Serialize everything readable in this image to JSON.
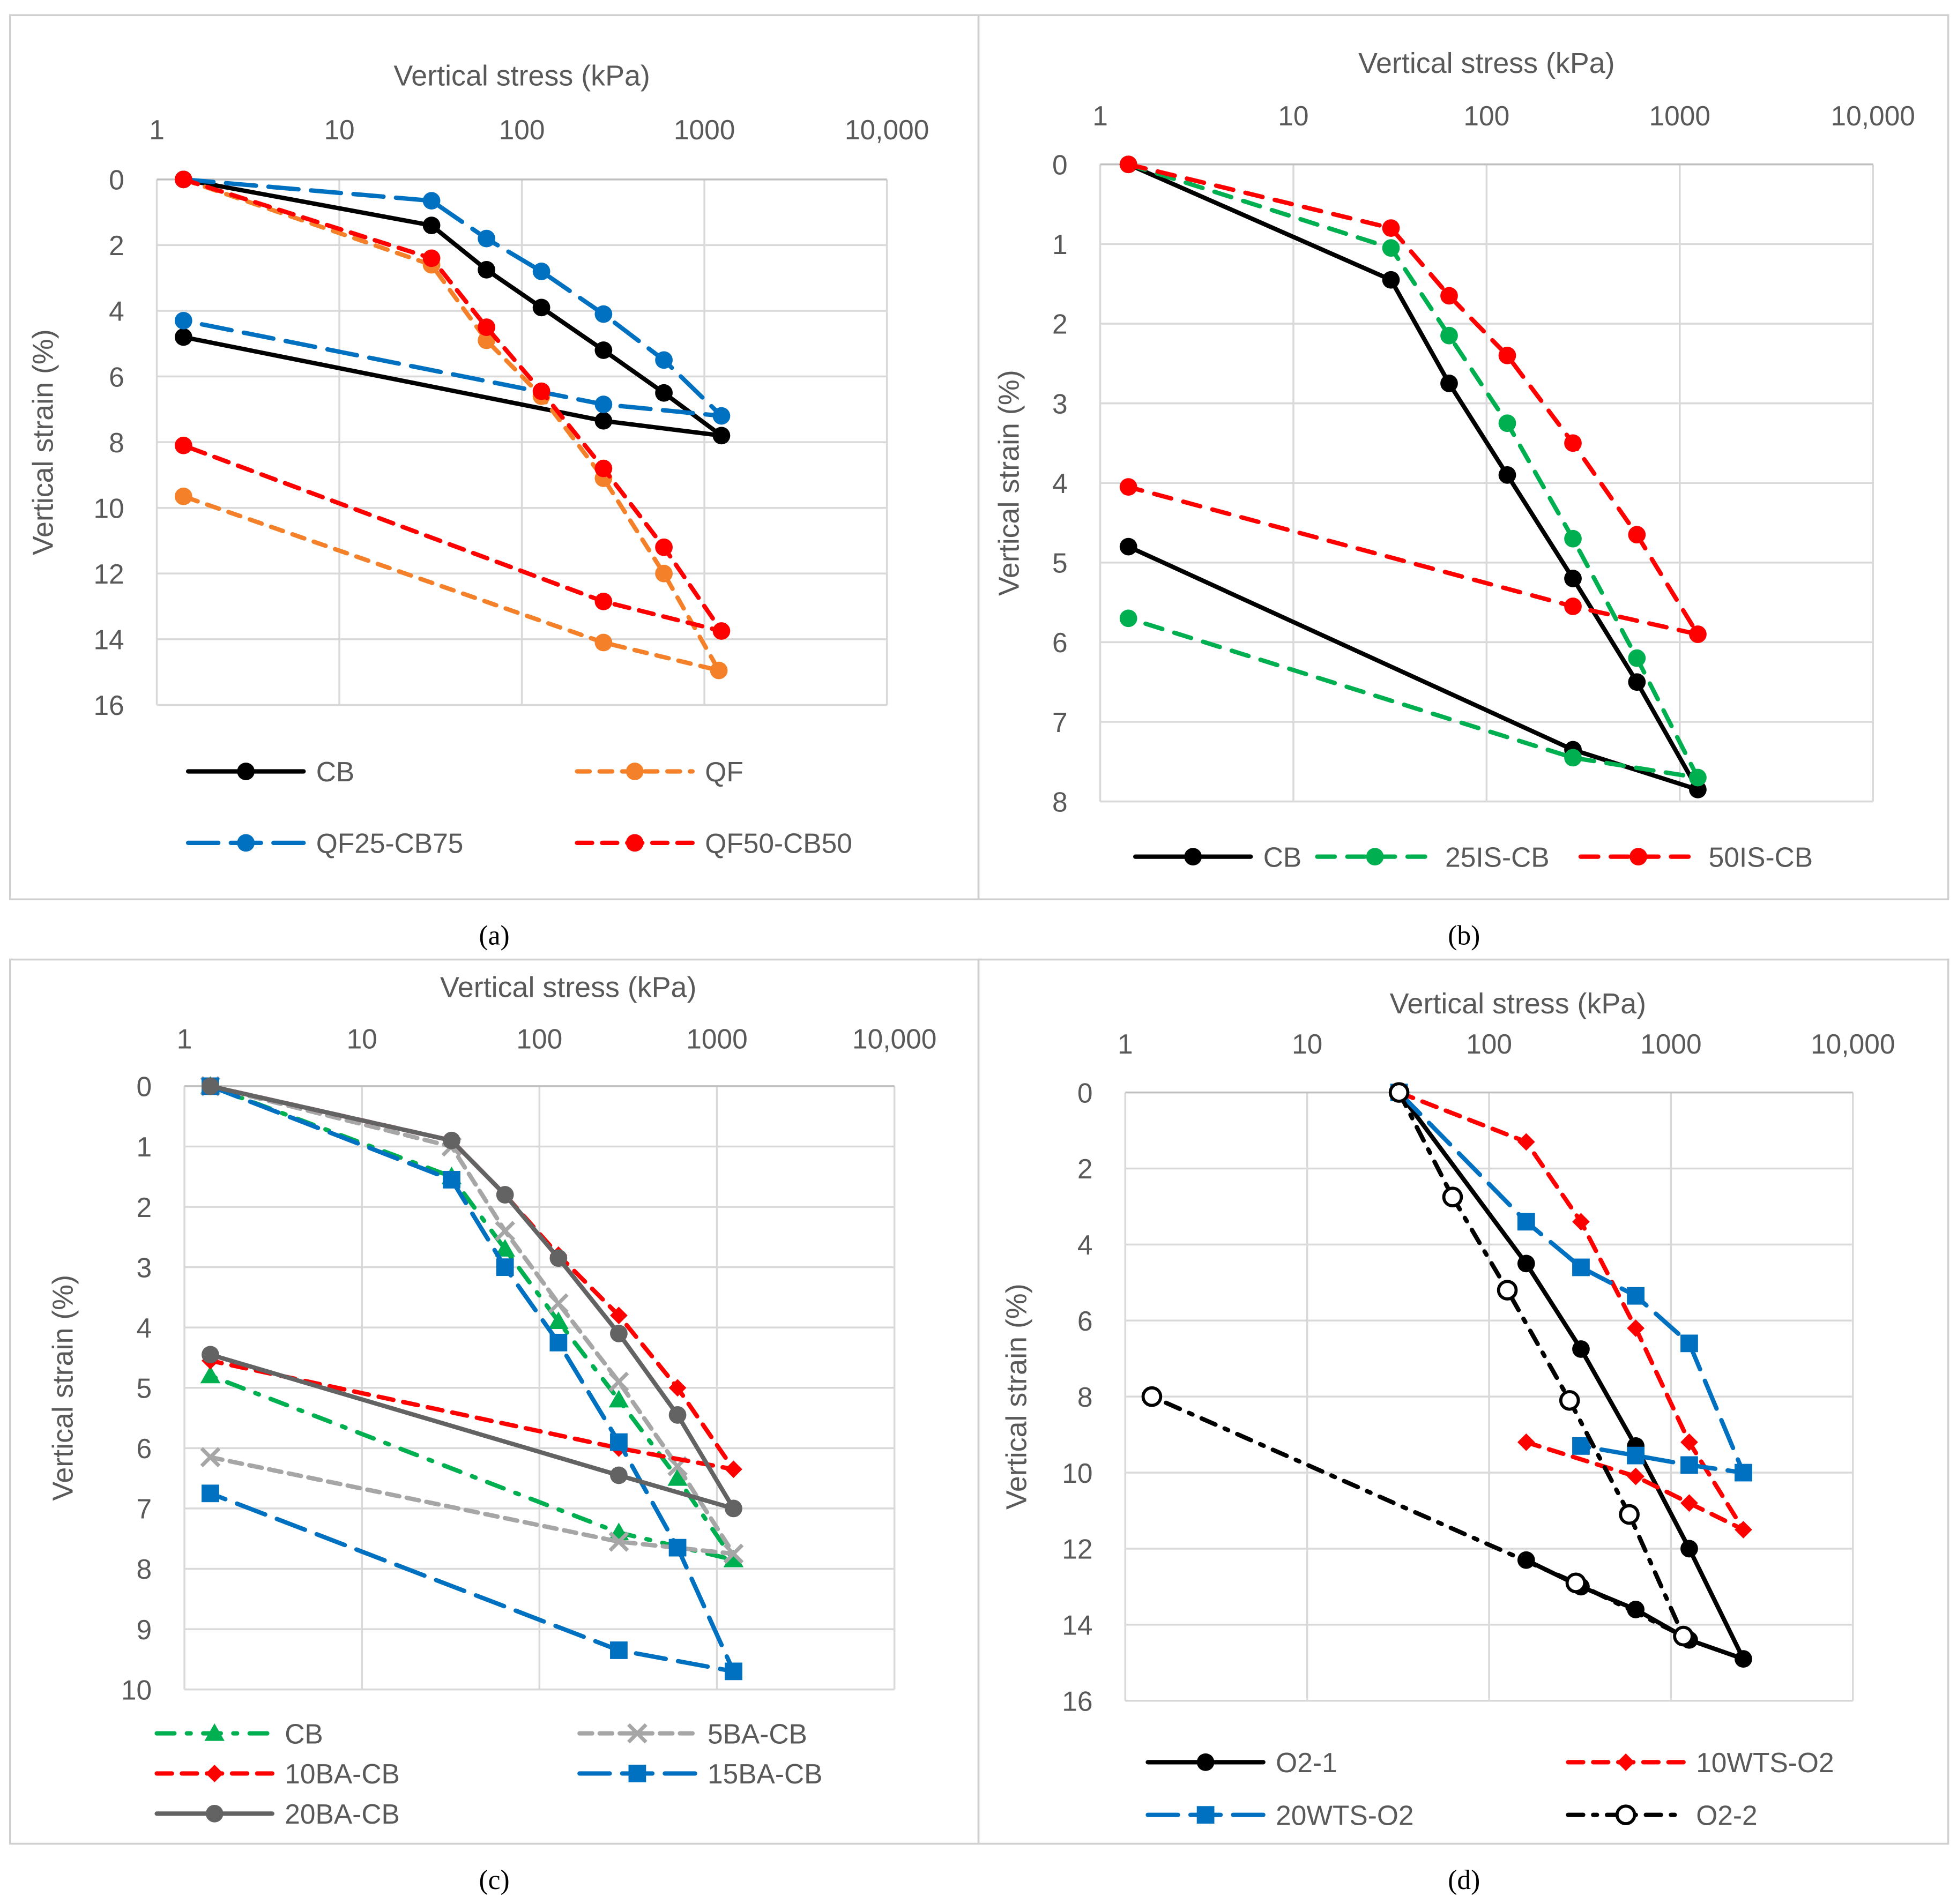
{
  "captions": [
    "(a)",
    "(b)",
    "(c)",
    "(d)"
  ],
  "chart_data": [
    {
      "type": "line",
      "title": "Vertical stress (kPa)",
      "xlabel": "Vertical stress (kPa)",
      "ylabel": "Vertical strain (%)",
      "xscale": "log",
      "xlim": [
        1,
        10000
      ],
      "ylim": [
        0,
        16
      ],
      "y_inverted": true,
      "x_axis_position": "top",
      "xticks": [
        "1",
        "10",
        "100",
        "1000",
        "10,000"
      ],
      "yticks": [
        "0",
        "2",
        "4",
        "6",
        "8",
        "10",
        "12",
        "14",
        "16"
      ],
      "grid": true,
      "legend": "bottom",
      "series": [
        {
          "name": "CB",
          "color": "#000000",
          "marker": "circle",
          "x": [
            1.4,
            32,
            64,
            128,
            280,
            600,
            1240,
            280,
            1.4
          ],
          "y": [
            0,
            1.4,
            2.75,
            3.9,
            5.2,
            6.5,
            7.8,
            7.35,
            4.8
          ]
        },
        {
          "name": "QF",
          "color": "#F4812A",
          "marker": "circle",
          "x": [
            1.4,
            32,
            64,
            128,
            280,
            600,
            1200,
            280,
            1.4
          ],
          "y": [
            0,
            2.6,
            4.9,
            6.6,
            9.1,
            12.0,
            14.95,
            14.1,
            9.65
          ]
        },
        {
          "name": "QF25-CB75",
          "color": "#0070C0",
          "marker": "circle",
          "x": [
            1.4,
            32,
            64,
            128,
            280,
            600,
            1240,
            280,
            1.4
          ],
          "y": [
            0,
            0.65,
            1.8,
            2.8,
            4.1,
            5.5,
            7.2,
            6.85,
            4.3
          ]
        },
        {
          "name": "QF50-CB50",
          "color": "#FF0000",
          "marker": "circle",
          "x": [
            1.4,
            32,
            64,
            128,
            280,
            600,
            1240,
            280,
            1.4
          ],
          "y": [
            0,
            2.4,
            4.5,
            6.45,
            8.8,
            11.2,
            13.75,
            12.85,
            8.1
          ]
        }
      ]
    },
    {
      "type": "line",
      "title": "Vertical stress  (kPa)",
      "xlabel": "Vertical stress  (kPa)",
      "ylabel": "Vertical strain  (%)",
      "xscale": "log",
      "xlim": [
        1,
        10000
      ],
      "ylim": [
        0,
        8
      ],
      "y_inverted": true,
      "x_axis_position": "top",
      "xticks": [
        "1",
        "10",
        "100",
        "1000",
        "10,000"
      ],
      "yticks": [
        "0",
        "1",
        "2",
        "3",
        "4",
        "5",
        "6",
        "7",
        "8"
      ],
      "grid": true,
      "legend": "bottom",
      "series": [
        {
          "name": "CB",
          "color": "#000000",
          "marker": "circle",
          "x": [
            1.4,
            32,
            64,
            128,
            280,
            600,
            1240,
            280,
            1.4
          ],
          "y": [
            0,
            1.45,
            2.75,
            3.9,
            5.2,
            6.5,
            7.85,
            7.35,
            4.8
          ]
        },
        {
          "name": "25IS-CB",
          "color": "#00B050",
          "marker": "circle",
          "x": [
            1.4,
            32,
            64,
            128,
            280,
            600,
            1240,
            280,
            1.4
          ],
          "y": [
            0,
            1.05,
            2.15,
            3.25,
            4.7,
            6.2,
            7.7,
            7.45,
            5.7
          ]
        },
        {
          "name": "50IS-CB",
          "color": "#FF0000",
          "marker": "circle",
          "x": [
            1.4,
            32,
            64,
            128,
            280,
            600,
            1240,
            280,
            1.4
          ],
          "y": [
            0,
            0.8,
            1.65,
            2.4,
            3.5,
            4.65,
            5.9,
            5.55,
            4.05
          ]
        }
      ]
    },
    {
      "type": "line",
      "title": "Vertical stress  (kPa)",
      "xlabel": "Vertical stress  (kPa)",
      "ylabel": "Vertical strain  (%)",
      "xscale": "log",
      "xlim": [
        1,
        10000
      ],
      "ylim": [
        0,
        10
      ],
      "y_inverted": true,
      "x_axis_position": "top",
      "xticks": [
        "1",
        "10",
        "100",
        "1000",
        "10,000"
      ],
      "yticks": [
        "0",
        "1",
        "2",
        "3",
        "4",
        "5",
        "6",
        "7",
        "8",
        "9",
        "10"
      ],
      "grid": true,
      "legend": "bottom",
      "series": [
        {
          "name": "CB",
          "color": "#00B050",
          "marker": "triangle",
          "x": [
            1.4,
            32,
            64,
            128,
            280,
            600,
            1240,
            280,
            1.4
          ],
          "y": [
            0,
            1.5,
            2.7,
            3.9,
            5.2,
            6.5,
            7.85,
            7.4,
            4.8
          ]
        },
        {
          "name": "5BA-CB",
          "color": "#A6A6A6",
          "marker": "x",
          "x": [
            1.4,
            32,
            64,
            128,
            280,
            600,
            1240,
            280,
            1.4
          ],
          "y": [
            0,
            1.0,
            2.4,
            3.6,
            4.9,
            6.3,
            7.75,
            7.55,
            6.15
          ]
        },
        {
          "name": "10BA-CB",
          "color": "#FF0000",
          "marker": "diamond",
          "x": [
            1.4,
            32,
            64,
            128,
            280,
            600,
            1240,
            280,
            1.4
          ],
          "y": [
            0,
            0.9,
            1.8,
            2.8,
            3.8,
            5.0,
            6.35,
            6.0,
            4.55
          ]
        },
        {
          "name": "15BA-CB",
          "color": "#0070C0",
          "marker": "square",
          "x": [
            1.4,
            32,
            64,
            128,
            280,
            600,
            1240,
            280,
            1.4
          ],
          "y": [
            0,
            1.55,
            3.0,
            4.25,
            5.9,
            7.65,
            9.7,
            9.35,
            6.75
          ]
        },
        {
          "name": "20BA-CB",
          "color": "#636363",
          "marker": "circle",
          "x": [
            1.4,
            32,
            64,
            128,
            280,
            600,
            1240,
            280,
            1.4
          ],
          "y": [
            0,
            0.9,
            1.8,
            2.85,
            4.1,
            5.45,
            7.0,
            6.45,
            4.45
          ]
        }
      ]
    },
    {
      "type": "line",
      "title": "Vertical stress  (kPa)",
      "xlabel": "Vertical stress  (kPa)",
      "ylabel": "Vertical strain  (%)",
      "xscale": "log",
      "xlim": [
        1,
        10000
      ],
      "ylim": [
        0,
        16
      ],
      "y_inverted": true,
      "x_axis_position": "top",
      "xticks": [
        "1",
        "10",
        "100",
        "1000",
        "10,000"
      ],
      "yticks": [
        "0",
        "2",
        "4",
        "6",
        "8",
        "10",
        "12",
        "14",
        "16"
      ],
      "grid": true,
      "legend": "bottom",
      "series": [
        {
          "name": "O2-1",
          "color": "#000000",
          "marker": "circle",
          "x": [
            32,
            160,
            320,
            640,
            1260,
            2500,
            1260,
            640,
            320,
            160
          ],
          "y": [
            0,
            4.5,
            6.75,
            9.3,
            12.0,
            14.9,
            14.4,
            13.6,
            13.0,
            12.3
          ]
        },
        {
          "name": "10WTS-O2",
          "color": "#FF0000",
          "marker": "diamond",
          "x": [
            32,
            160,
            320,
            640,
            1260,
            2500,
            1260,
            640,
            160
          ],
          "y": [
            0,
            1.3,
            3.4,
            6.2,
            9.2,
            11.5,
            10.8,
            10.1,
            9.2
          ]
        },
        {
          "name": "20WTS-O2",
          "color": "#0070C0",
          "marker": "square",
          "x": [
            32,
            160,
            320,
            640,
            1260,
            2500,
            1260,
            640,
            320
          ],
          "y": [
            0,
            3.4,
            4.6,
            5.35,
            6.6,
            10.0,
            9.8,
            9.55,
            9.3
          ]
        },
        {
          "name": "O2-2",
          "color": "#000000",
          "marker": "open-circle",
          "x": [
            32,
            63,
            126,
            277,
            590,
            1170,
            300,
            1.4
          ],
          "y": [
            0,
            2.75,
            5.2,
            8.1,
            11.1,
            14.3,
            12.9,
            8.0
          ]
        }
      ]
    }
  ]
}
